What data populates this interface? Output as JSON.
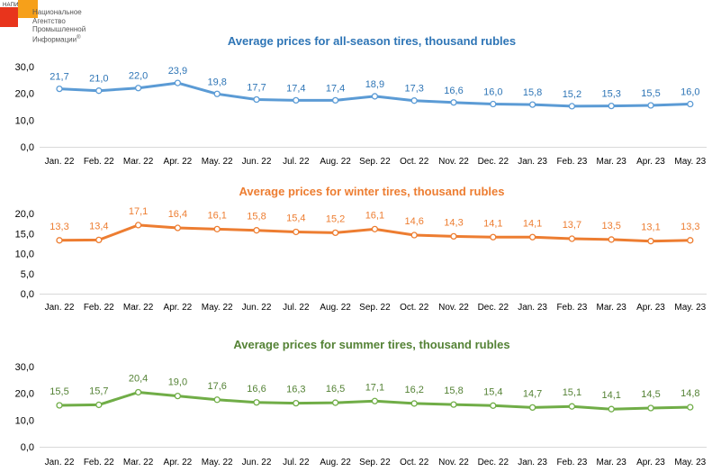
{
  "logo": {
    "abbr": "НАПИ",
    "name": "Национальное\nАгентство\nПромышленной\nИнформации",
    "mark": "®",
    "colors": {
      "red": "#e8341c",
      "orange": "#f6a01a"
    }
  },
  "chart_data": [
    {
      "type": "line",
      "title": "Average prices for all-season tires, thousand rubles",
      "color": "#5b9bd5",
      "title_color": "#2e75b6",
      "label_color": "#2e75b6",
      "categories": [
        "Jan. 22",
        "Feb. 22",
        "Mar. 22",
        "Apr. 22",
        "May. 22",
        "Jun. 22",
        "Jul. 22",
        "Aug. 22",
        "Sep. 22",
        "Oct. 22",
        "Nov. 22",
        "Dec. 22",
        "Jan. 23",
        "Feb. 23",
        "Mar. 23",
        "Apr. 23",
        "May. 23"
      ],
      "values": [
        21.7,
        21.0,
        22.0,
        23.9,
        19.8,
        17.7,
        17.4,
        17.4,
        18.9,
        17.3,
        16.6,
        16.0,
        15.8,
        15.2,
        15.3,
        15.5,
        16.0
      ],
      "value_labels": [
        "21,7",
        "21,0",
        "22,0",
        "23,9",
        "19,8",
        "17,7",
        "17,4",
        "17,4",
        "18,9",
        "17,3",
        "16,6",
        "16,0",
        "15,8",
        "15,2",
        "15,3",
        "15,5",
        "16,0"
      ],
      "yticks": [
        "0,0",
        "10,0",
        "20,0",
        "30,0"
      ],
      "ylim": [
        0,
        30
      ],
      "grid": false
    },
    {
      "type": "line",
      "title": "Average prices for winter tires, thousand rubles",
      "color": "#ed7d31",
      "title_color": "#ed7d31",
      "label_color": "#ed7d31",
      "categories": [
        "Jan. 22",
        "Feb. 22",
        "Mar. 22",
        "Apr. 22",
        "May. 22",
        "Jun. 22",
        "Jul. 22",
        "Aug. 22",
        "Sep. 22",
        "Oct. 22",
        "Nov. 22",
        "Dec. 22",
        "Jan. 23",
        "Feb. 23",
        "Mar. 23",
        "Apr. 23",
        "May. 23"
      ],
      "values": [
        13.3,
        13.4,
        17.1,
        16.4,
        16.1,
        15.8,
        15.4,
        15.2,
        16.1,
        14.6,
        14.3,
        14.1,
        14.1,
        13.7,
        13.5,
        13.1,
        13.3
      ],
      "value_labels": [
        "13,3",
        "13,4",
        "17,1",
        "16,4",
        "16,1",
        "15,8",
        "15,4",
        "15,2",
        "16,1",
        "14,6",
        "14,3",
        "14,1",
        "14,1",
        "13,7",
        "13,5",
        "13,1",
        "13,3"
      ],
      "yticks": [
        "0,0",
        "5,0",
        "10,0",
        "15,0",
        "20,0"
      ],
      "ylim": [
        0,
        20
      ],
      "grid": false
    },
    {
      "type": "line",
      "title": "Average prices for summer tires, thousand rubles",
      "color": "#70ad47",
      "title_color": "#548235",
      "label_color": "#548235",
      "categories": [
        "Jan. 22",
        "Feb. 22",
        "Mar. 22",
        "Apr. 22",
        "May. 22",
        "Jun. 22",
        "Jul. 22",
        "Aug. 22",
        "Sep. 22",
        "Oct. 22",
        "Nov. 22",
        "Dec. 22",
        "Jan. 23",
        "Feb. 23",
        "Mar. 23",
        "Apr. 23",
        "May. 23"
      ],
      "values": [
        15.5,
        15.7,
        20.4,
        19.0,
        17.6,
        16.6,
        16.3,
        16.5,
        17.1,
        16.2,
        15.8,
        15.4,
        14.7,
        15.1,
        14.1,
        14.5,
        14.8
      ],
      "value_labels": [
        "15,5",
        "15,7",
        "20,4",
        "19,0",
        "17,6",
        "16,6",
        "16,3",
        "16,5",
        "17,1",
        "16,2",
        "15,8",
        "15,4",
        "14,7",
        "15,1",
        "14,1",
        "14,5",
        "14,8"
      ],
      "yticks": [
        "0,0",
        "10,0",
        "20,0",
        "30,0"
      ],
      "ylim": [
        0,
        30
      ],
      "grid": false
    }
  ]
}
